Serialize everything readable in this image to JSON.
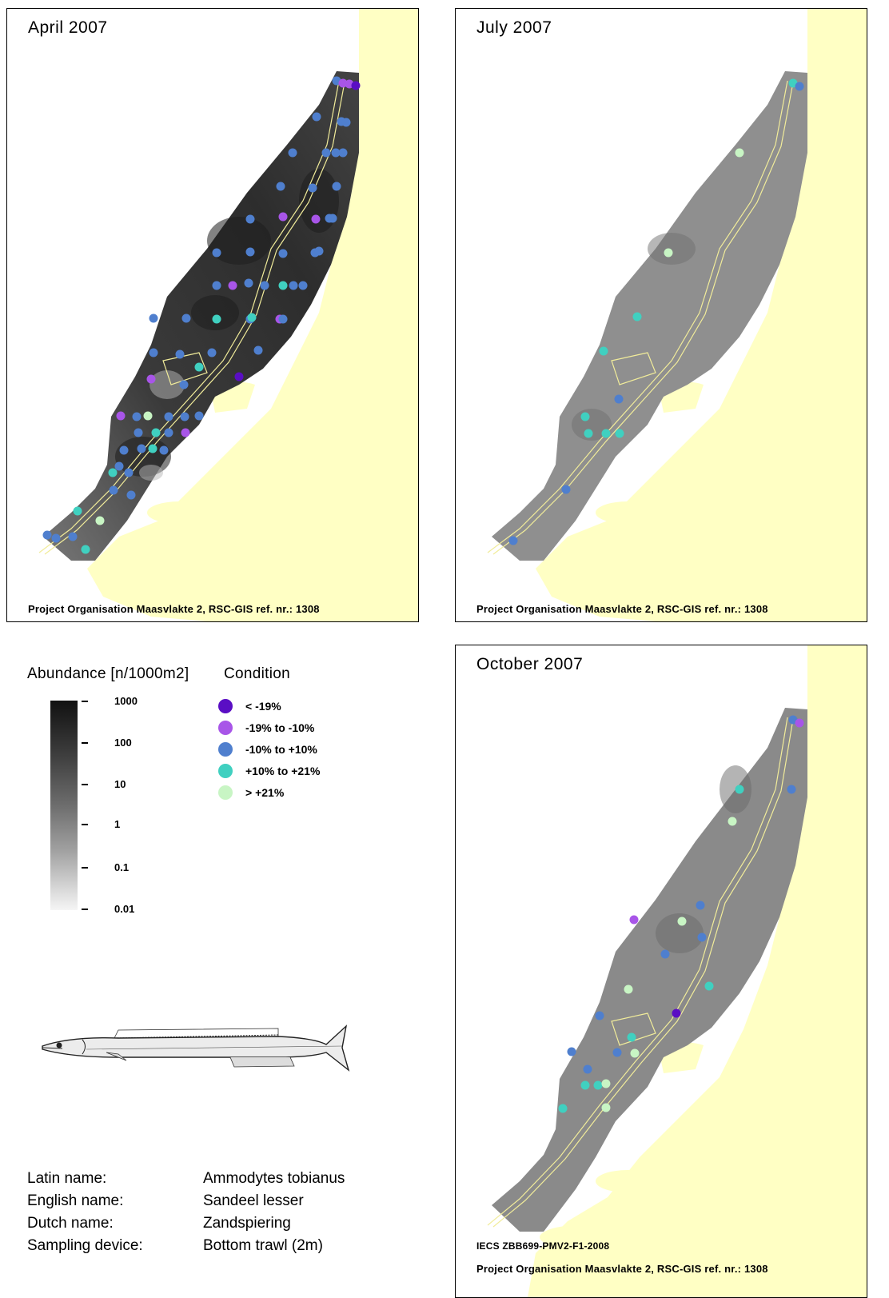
{
  "panels": {
    "april": {
      "title": "April 2007",
      "credit": "Project Organisation Maasvlakte 2, RSC-GIS ref. nr.: 1308"
    },
    "july": {
      "title": "July 2007",
      "credit": "Project Organisation Maasvlakte 2, RSC-GIS ref. nr.: 1308"
    },
    "october": {
      "title": "October 2007",
      "doc_ref": "IECS ZBB699-PMV2-F1-2008",
      "credit": "Project Organisation Maasvlakte 2, RSC-GIS ref. nr.: 1308"
    }
  },
  "legend": {
    "abundance": {
      "title": "Abundance [n/1000m2]",
      "ticks": [
        "1000",
        "100",
        "10",
        "1",
        "0.1",
        "0.01"
      ]
    },
    "condition": {
      "title": "Condition",
      "classes": [
        {
          "label": "< -19%",
          "color": "#5a0ec4"
        },
        {
          "label": "-19% to -10%",
          "color": "#a855e8"
        },
        {
          "label": "-10% to +10%",
          "color": "#4f7fce"
        },
        {
          "label": "+10% to +21%",
          "color": "#40d0c0"
        },
        {
          "label": "> +21%",
          "color": "#c8f5c4"
        }
      ]
    }
  },
  "species": {
    "rows": [
      {
        "key": "Latin name:",
        "value": "Ammodytes tobianus"
      },
      {
        "key": "English name:",
        "value": "Sandeel lesser"
      },
      {
        "key": "Dutch name:",
        "value": "Zandspiering"
      },
      {
        "key": "Sampling device:",
        "value": "Bottom trawl (2m)"
      }
    ]
  },
  "colors": {
    "land": "#ffffc4",
    "sea": "#ffffff",
    "route": "#f1ec9a"
  }
}
